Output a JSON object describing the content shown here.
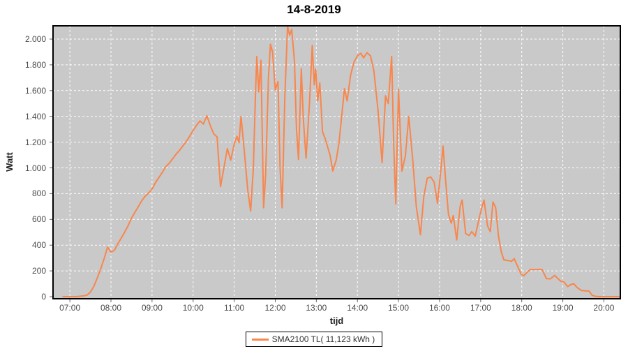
{
  "title": "14-8-2019",
  "colors": {
    "line": "#F8864D",
    "plot_bg": "#C9C9C9",
    "grid": "#FFFFFF",
    "plot_border": "#000000",
    "tick": "#666666",
    "tick_text": "#4A4A4A"
  },
  "legend": {
    "label": "SMA2100 TL( 11,123 kWh )"
  },
  "chart_data": {
    "type": "line",
    "title": "14-8-2019",
    "xlabel": "tijd",
    "ylabel": "Watt",
    "grid": true,
    "legend_position": "bottom-center",
    "xlim_hours": [
      6.59,
      20.4
    ],
    "ylim": [
      0,
      2100
    ],
    "x_ticks": [
      "07:00",
      "08:00",
      "09:00",
      "10:00",
      "11:00",
      "12:00",
      "13:00",
      "14:00",
      "15:00",
      "16:00",
      "17:00",
      "18:00",
      "19:00",
      "20:00"
    ],
    "y_ticks": [
      {
        "label": "0",
        "value": 0
      },
      {
        "label": "200",
        "value": 200
      },
      {
        "label": "400",
        "value": 400
      },
      {
        "label": "600",
        "value": 600
      },
      {
        "label": "800",
        "value": 800
      },
      {
        "label": "1.000",
        "value": 1000
      },
      {
        "label": "1.200",
        "value": 1200
      },
      {
        "label": "1.400",
        "value": 1400
      },
      {
        "label": "1.600",
        "value": 1600
      },
      {
        "label": "1.800",
        "value": 1800
      },
      {
        "label": "2.000",
        "value": 2000
      }
    ],
    "series": [
      {
        "name": "SMA2100 TL( 11,123 kWh )",
        "color": "#F8864D",
        "unit": "Watt",
        "points": [
          [
            "06:50",
            0
          ],
          [
            "06:55",
            0
          ],
          [
            "07:00",
            0
          ],
          [
            "07:05",
            0
          ],
          [
            "07:10",
            0
          ],
          [
            "07:15",
            3
          ],
          [
            "07:20",
            6
          ],
          [
            "07:25",
            12
          ],
          [
            "07:30",
            35
          ],
          [
            "07:35",
            80
          ],
          [
            "07:40",
            145
          ],
          [
            "07:45",
            215
          ],
          [
            "07:50",
            295
          ],
          [
            "07:55",
            385
          ],
          [
            "08:00",
            345
          ],
          [
            "08:05",
            360
          ],
          [
            "08:10",
            410
          ],
          [
            "08:15",
            455
          ],
          [
            "08:20",
            500
          ],
          [
            "08:25",
            550
          ],
          [
            "08:30",
            610
          ],
          [
            "08:35",
            655
          ],
          [
            "08:40",
            700
          ],
          [
            "08:45",
            745
          ],
          [
            "08:50",
            780
          ],
          [
            "08:55",
            805
          ],
          [
            "09:00",
            835
          ],
          [
            "09:05",
            885
          ],
          [
            "09:10",
            925
          ],
          [
            "09:15",
            965
          ],
          [
            "09:20",
            1010
          ],
          [
            "09:25",
            1035
          ],
          [
            "09:30",
            1070
          ],
          [
            "09:35",
            1105
          ],
          [
            "09:40",
            1135
          ],
          [
            "09:45",
            1170
          ],
          [
            "09:50",
            1205
          ],
          [
            "09:55",
            1245
          ],
          [
            "10:00",
            1290
          ],
          [
            "10:05",
            1330
          ],
          [
            "10:10",
            1365
          ],
          [
            "10:15",
            1340
          ],
          [
            "10:20",
            1405
          ],
          [
            "10:25",
            1330
          ],
          [
            "10:30",
            1265
          ],
          [
            "10:35",
            1240
          ],
          [
            "10:40",
            855
          ],
          [
            "10:45",
            1000
          ],
          [
            "10:50",
            1150
          ],
          [
            "10:55",
            1060
          ],
          [
            "11:00",
            1185
          ],
          [
            "11:04",
            1245
          ],
          [
            "11:07",
            1195
          ],
          [
            "11:10",
            1400
          ],
          [
            "11:15",
            1120
          ],
          [
            "11:20",
            820
          ],
          [
            "11:24",
            665
          ],
          [
            "11:28",
            1000
          ],
          [
            "11:31",
            1550
          ],
          [
            "11:33",
            1865
          ],
          [
            "11:36",
            1590
          ],
          [
            "11:39",
            1835
          ],
          [
            "11:43",
            690
          ],
          [
            "11:46",
            960
          ],
          [
            "11:50",
            1700
          ],
          [
            "11:53",
            1960
          ],
          [
            "11:56",
            1900
          ],
          [
            "12:00",
            1605
          ],
          [
            "12:04",
            1670
          ],
          [
            "12:07",
            1000
          ],
          [
            "12:10",
            690
          ],
          [
            "12:14",
            1550
          ],
          [
            "12:18",
            2120
          ],
          [
            "12:21",
            2030
          ],
          [
            "12:24",
            2075
          ],
          [
            "12:28",
            1830
          ],
          [
            "12:31",
            1300
          ],
          [
            "12:34",
            1065
          ],
          [
            "12:38",
            1770
          ],
          [
            "12:41",
            1380
          ],
          [
            "12:45",
            1075
          ],
          [
            "12:50",
            1500
          ],
          [
            "12:54",
            1950
          ],
          [
            "12:57",
            1645
          ],
          [
            "12:59",
            1770
          ],
          [
            "13:02",
            1520
          ],
          [
            "13:05",
            1660
          ],
          [
            "13:09",
            1280
          ],
          [
            "13:13",
            1225
          ],
          [
            "13:16",
            1170
          ],
          [
            "13:20",
            1100
          ],
          [
            "13:24",
            975
          ],
          [
            "13:29",
            1060
          ],
          [
            "13:33",
            1190
          ],
          [
            "13:37",
            1400
          ],
          [
            "13:41",
            1615
          ],
          [
            "13:45",
            1520
          ],
          [
            "13:50",
            1720
          ],
          [
            "13:55",
            1820
          ],
          [
            "14:00",
            1870
          ],
          [
            "14:05",
            1890
          ],
          [
            "14:09",
            1855
          ],
          [
            "14:14",
            1895
          ],
          [
            "14:19",
            1870
          ],
          [
            "14:24",
            1755
          ],
          [
            "14:30",
            1450
          ],
          [
            "14:36",
            1040
          ],
          [
            "14:41",
            1560
          ],
          [
            "14:45",
            1500
          ],
          [
            "14:50",
            1865
          ],
          [
            "14:53",
            1180
          ],
          [
            "14:56",
            720
          ],
          [
            "15:00",
            1610
          ],
          [
            "15:05",
            975
          ],
          [
            "15:10",
            1090
          ],
          [
            "15:15",
            1400
          ],
          [
            "15:21",
            1050
          ],
          [
            "15:26",
            700
          ],
          [
            "15:32",
            480
          ],
          [
            "15:37",
            780
          ],
          [
            "15:42",
            920
          ],
          [
            "15:47",
            930
          ],
          [
            "15:52",
            890
          ],
          [
            "15:57",
            725
          ],
          [
            "16:02",
            990
          ],
          [
            "16:05",
            1170
          ],
          [
            "16:09",
            890
          ],
          [
            "16:13",
            640
          ],
          [
            "16:17",
            570
          ],
          [
            "16:20",
            630
          ],
          [
            "16:25",
            440
          ],
          [
            "16:30",
            700
          ],
          [
            "16:33",
            750
          ],
          [
            "16:38",
            490
          ],
          [
            "16:43",
            475
          ],
          [
            "16:47",
            505
          ],
          [
            "16:52",
            470
          ],
          [
            "16:57",
            590
          ],
          [
            "17:02",
            700
          ],
          [
            "17:05",
            750
          ],
          [
            "17:10",
            550
          ],
          [
            "17:14",
            505
          ],
          [
            "17:18",
            735
          ],
          [
            "17:22",
            690
          ],
          [
            "17:26",
            470
          ],
          [
            "17:30",
            350
          ],
          [
            "17:34",
            285
          ],
          [
            "17:40",
            280
          ],
          [
            "17:45",
            275
          ],
          [
            "17:49",
            295
          ],
          [
            "17:54",
            235
          ],
          [
            "17:59",
            175
          ],
          [
            "18:03",
            162
          ],
          [
            "18:08",
            190
          ],
          [
            "18:13",
            212
          ],
          [
            "18:19",
            210
          ],
          [
            "18:25",
            212
          ],
          [
            "18:30",
            210
          ],
          [
            "18:36",
            140
          ],
          [
            "18:42",
            138
          ],
          [
            "18:48",
            165
          ],
          [
            "18:53",
            140
          ],
          [
            "18:57",
            120
          ],
          [
            "19:02",
            113
          ],
          [
            "19:07",
            78
          ],
          [
            "19:12",
            95
          ],
          [
            "19:16",
            100
          ],
          [
            "19:21",
            70
          ],
          [
            "19:27",
            48
          ],
          [
            "19:33",
            45
          ],
          [
            "19:38",
            44
          ],
          [
            "19:43",
            10
          ],
          [
            "19:48",
            2
          ],
          [
            "19:54",
            0
          ],
          [
            "20:00",
            0
          ],
          [
            "20:06",
            0
          ],
          [
            "20:12",
            0
          ],
          [
            "20:18",
            0
          ],
          [
            "20:24",
            0
          ]
        ]
      }
    ]
  }
}
